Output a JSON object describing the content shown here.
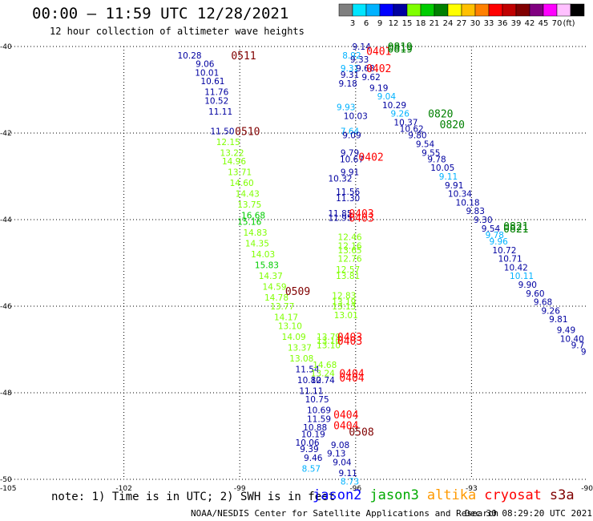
{
  "header": {
    "title": "00:00 – 11:59 UTC 12/28/2021",
    "subtitle": "12 hour collection of altimeter wave heights"
  },
  "colorbar": {
    "colors": [
      "#7f7f7f",
      "#00e5ff",
      "#00b2ff",
      "#0000ff",
      "#0000a0",
      "#7fff00",
      "#00cc00",
      "#008000",
      "#ffff00",
      "#ffc000",
      "#ff8000",
      "#ff0000",
      "#c00000",
      "#800000",
      "#800080",
      "#ff00ff",
      "#ffc0ff",
      "#000000"
    ],
    "ticks": [
      "3",
      "6",
      "9",
      "12",
      "15",
      "18",
      "21",
      "24",
      "27",
      "30",
      "33",
      "36",
      "39",
      "42",
      "45",
      "70"
    ],
    "unit": "(ft)"
  },
  "note": "note: 1) Time is in UTC; 2) SWH is in feet",
  "legend": [
    {
      "name": "jason2",
      "color": "#0000ff"
    },
    {
      "name": "jason3",
      "color": "#00aa00"
    },
    {
      "name": "altika",
      "color": "#ff9900"
    },
    {
      "name": "cryosat",
      "color": "#ff0000"
    },
    {
      "name": "s3a",
      "color": "#800000"
    }
  ],
  "footer": {
    "left": "NOAA/NESDIS Center for Satellite Applications and Research",
    "right": "Dec 30 08:29:20 UTC 2021"
  },
  "chart_data": {
    "type": "scatter",
    "title": "00:00 – 11:59 UTC 12/28/2021",
    "subtitle": "12 hour collection of altimeter wave heights",
    "xlim": [
      -105,
      -90
    ],
    "ylim": [
      -50,
      -40
    ],
    "x_ticks": [
      "-105",
      "-102",
      "-99",
      "-96",
      "-93",
      "-90"
    ],
    "y_ticks": [
      "-40",
      "-42",
      "-44",
      "-46",
      "-48",
      "-50"
    ],
    "grid": true,
    "points": [
      {
        "x": -100.3,
        "y": -40.2,
        "label": "10.28",
        "color": "#0000a0"
      },
      {
        "x": -99.9,
        "y": -40.4,
        "label": "9.06",
        "color": "#0000a0"
      },
      {
        "x": -99.85,
        "y": -40.6,
        "label": "10.01",
        "color": "#0000a0"
      },
      {
        "x": -99.7,
        "y": -40.8,
        "label": "10.61",
        "color": "#0000a0"
      },
      {
        "x": -99.6,
        "y": -41.05,
        "label": "11.76",
        "color": "#0000a0"
      },
      {
        "x": -99.6,
        "y": -41.25,
        "label": "10.52",
        "color": "#0000a0"
      },
      {
        "x": -99.5,
        "y": -41.5,
        "label": "11.11",
        "color": "#0000a0"
      },
      {
        "x": -99.45,
        "y": -41.95,
        "label": "11.50",
        "color": "#0000a0"
      },
      {
        "x": -99.3,
        "y": -42.2,
        "label": "12.15",
        "color": "#7fff00"
      },
      {
        "x": -99.2,
        "y": -42.45,
        "label": "13.22",
        "color": "#7fff00"
      },
      {
        "x": -99.15,
        "y": -42.65,
        "label": "14.96",
        "color": "#7fff00"
      },
      {
        "x": -99.0,
        "y": -42.9,
        "label": "13.71",
        "color": "#7fff00"
      },
      {
        "x": -98.95,
        "y": -43.15,
        "label": "14.60",
        "color": "#7fff00"
      },
      {
        "x": -98.8,
        "y": -43.4,
        "label": "14.43",
        "color": "#7fff00"
      },
      {
        "x": -98.75,
        "y": -43.65,
        "label": "13.75",
        "color": "#7fff00"
      },
      {
        "x": -98.65,
        "y": -43.9,
        "label": "16.68",
        "color": "#00cc00"
      },
      {
        "x": -98.75,
        "y": -44.05,
        "label": "15.16",
        "color": "#00cc00"
      },
      {
        "x": -98.6,
        "y": -44.3,
        "label": "14.83",
        "color": "#7fff00"
      },
      {
        "x": -98.55,
        "y": -44.55,
        "label": "14.35",
        "color": "#7fff00"
      },
      {
        "x": -98.4,
        "y": -44.8,
        "label": "14.03",
        "color": "#7fff00"
      },
      {
        "x": -98.3,
        "y": -45.05,
        "label": "15.83",
        "color": "#00cc00"
      },
      {
        "x": -98.2,
        "y": -45.3,
        "label": "14.37",
        "color": "#7fff00"
      },
      {
        "x": -98.1,
        "y": -45.55,
        "label": "14.59",
        "color": "#7fff00"
      },
      {
        "x": -98.05,
        "y": -45.8,
        "label": "14.78",
        "color": "#7fff00"
      },
      {
        "x": -97.9,
        "y": -46.0,
        "label": "13.77",
        "color": "#7fff00"
      },
      {
        "x": -97.8,
        "y": -46.25,
        "label": "14.17",
        "color": "#7fff00"
      },
      {
        "x": -97.7,
        "y": -46.45,
        "label": "13.10",
        "color": "#7fff00"
      },
      {
        "x": -97.6,
        "y": -46.7,
        "label": "14.09",
        "color": "#7fff00"
      },
      {
        "x": -97.45,
        "y": -46.95,
        "label": "13.37",
        "color": "#7fff00"
      },
      {
        "x": -97.4,
        "y": -47.2,
        "label": "13.08",
        "color": "#7fff00"
      },
      {
        "x": -97.25,
        "y": -47.45,
        "label": "11.54",
        "color": "#0000a0"
      },
      {
        "x": -97.2,
        "y": -47.7,
        "label": "10.80",
        "color": "#0000a0"
      },
      {
        "x": -97.15,
        "y": -47.95,
        "label": "11.11",
        "color": "#0000a0"
      },
      {
        "x": -97.0,
        "y": -48.15,
        "label": "10.75",
        "color": "#0000a0"
      },
      {
        "x": -96.95,
        "y": -48.4,
        "label": "10.69",
        "color": "#0000a0"
      },
      {
        "x": -96.95,
        "y": -48.6,
        "label": "11.59",
        "color": "#0000a0"
      },
      {
        "x": -97.05,
        "y": -48.8,
        "label": "10.88",
        "color": "#0000a0"
      },
      {
        "x": -97.1,
        "y": -48.95,
        "label": "10.19",
        "color": "#0000a0"
      },
      {
        "x": -97.2,
        "y": -49.3,
        "label": "9.39",
        "color": "#0000a0"
      },
      {
        "x": -97.25,
        "y": -49.15,
        "label": "10.06",
        "color": "#0000a0"
      },
      {
        "x": -97.1,
        "y": -49.5,
        "label": "9.46",
        "color": "#0000a0"
      },
      {
        "x": -97.15,
        "y": -49.75,
        "label": "8.57",
        "color": "#00b2ff"
      },
      {
        "x": -96.4,
        "y": -49.2,
        "label": "9.08",
        "color": "#0000a0"
      },
      {
        "x": -96.5,
        "y": -49.4,
        "label": "9.13",
        "color": "#0000a0"
      },
      {
        "x": -96.35,
        "y": -49.6,
        "label": "9.04",
        "color": "#0000a0"
      },
      {
        "x": -96.2,
        "y": -49.85,
        "label": "9.11",
        "color": "#0000a0"
      },
      {
        "x": -96.15,
        "y": -50.05,
        "label": "8.73",
        "color": "#00b2ff"
      },
      {
        "x": -96.1,
        "y": -40.2,
        "label": "8.92",
        "color": "#00b2ff"
      },
      {
        "x": -95.85,
        "y": -40.0,
        "label": "9.14",
        "color": "#0000a0"
      },
      {
        "x": -96.15,
        "y": -40.5,
        "label": "9.31",
        "color": "#00b2ff"
      },
      {
        "x": -96.15,
        "y": -40.65,
        "label": "9.31",
        "color": "#0000a0"
      },
      {
        "x": -96.2,
        "y": -40.85,
        "label": "9.18",
        "color": "#0000a0"
      },
      {
        "x": -96.25,
        "y": -41.4,
        "label": "9.93",
        "color": "#00b2ff"
      },
      {
        "x": -96.0,
        "y": -41.6,
        "label": "10.03",
        "color": "#0000a0"
      },
      {
        "x": -96.15,
        "y": -41.95,
        "label": "7.64",
        "color": "#00b2ff"
      },
      {
        "x": -96.1,
        "y": -42.05,
        "label": "9.09",
        "color": "#0000a0"
      },
      {
        "x": -96.15,
        "y": -42.45,
        "label": "9.79",
        "color": "#0000a0"
      },
      {
        "x": -96.1,
        "y": -42.6,
        "label": "10.67",
        "color": "#0000a0"
      },
      {
        "x": -96.15,
        "y": -42.9,
        "label": "9.91",
        "color": "#0000a0"
      },
      {
        "x": -96.4,
        "y": -43.05,
        "label": "10.32",
        "color": "#0000a0"
      },
      {
        "x": -96.2,
        "y": -43.35,
        "label": "11.56",
        "color": "#0000a0"
      },
      {
        "x": -96.2,
        "y": -43.5,
        "label": "11.30",
        "color": "#0000a0"
      },
      {
        "x": -96.4,
        "y": -43.85,
        "label": "11.85",
        "color": "#0000a0"
      },
      {
        "x": -96.4,
        "y": -43.95,
        "label": "11.95",
        "color": "#0000a0"
      },
      {
        "x": -96.15,
        "y": -44.4,
        "label": "12.46",
        "color": "#7fff00"
      },
      {
        "x": -96.15,
        "y": -44.6,
        "label": "12.16",
        "color": "#7fff00"
      },
      {
        "x": -96.15,
        "y": -44.7,
        "label": "13.65",
        "color": "#7fff00"
      },
      {
        "x": -96.15,
        "y": -44.9,
        "label": "12.76",
        "color": "#7fff00"
      },
      {
        "x": -96.2,
        "y": -45.15,
        "label": "12.57",
        "color": "#7fff00"
      },
      {
        "x": -96.2,
        "y": -45.3,
        "label": "13.81",
        "color": "#7fff00"
      },
      {
        "x": -96.3,
        "y": -45.75,
        "label": "12.83",
        "color": "#7fff00"
      },
      {
        "x": -96.3,
        "y": -45.9,
        "label": "13.19",
        "color": "#7fff00"
      },
      {
        "x": -96.3,
        "y": -46.0,
        "label": "13.13",
        "color": "#7fff00"
      },
      {
        "x": -96.25,
        "y": -46.2,
        "label": "13.01",
        "color": "#7fff00"
      },
      {
        "x": -96.7,
        "y": -46.7,
        "label": "13.79",
        "color": "#7fff00"
      },
      {
        "x": -96.7,
        "y": -46.8,
        "label": "13.10",
        "color": "#7fff00"
      },
      {
        "x": -96.7,
        "y": -46.9,
        "label": "13.10",
        "color": "#7fff00"
      },
      {
        "x": -96.8,
        "y": -47.35,
        "label": "14.68",
        "color": "#7fff00"
      },
      {
        "x": -96.85,
        "y": -47.55,
        "label": "13.24",
        "color": "#7fff00"
      },
      {
        "x": -96.85,
        "y": -47.7,
        "label": "12.74",
        "color": "#0000a0"
      },
      {
        "x": -95.9,
        "y": -40.3,
        "label": "9.33",
        "color": "#0000a0"
      },
      {
        "x": -95.75,
        "y": -40.5,
        "label": "9.68",
        "color": "#0000a0"
      },
      {
        "x": -95.6,
        "y": -40.7,
        "label": "9.62",
        "color": "#0000a0"
      },
      {
        "x": -95.4,
        "y": -40.95,
        "label": "9.19",
        "color": "#0000a0"
      },
      {
        "x": -95.2,
        "y": -41.15,
        "label": "9.04",
        "color": "#00b2ff"
      },
      {
        "x": -95.0,
        "y": -41.35,
        "label": "10.29",
        "color": "#0000a0"
      },
      {
        "x": -94.85,
        "y": -41.55,
        "label": "9.26",
        "color": "#00b2ff"
      },
      {
        "x": -94.7,
        "y": -41.75,
        "label": "10.37",
        "color": "#0000a0"
      },
      {
        "x": -94.55,
        "y": -41.9,
        "label": "10.62",
        "color": "#0000a0"
      },
      {
        "x": -94.4,
        "y": -42.05,
        "label": "9.80",
        "color": "#0000a0"
      },
      {
        "x": -94.2,
        "y": -42.25,
        "label": "9.54",
        "color": "#0000a0"
      },
      {
        "x": -94.05,
        "y": -42.45,
        "label": "9.55",
        "color": "#0000a0"
      },
      {
        "x": -93.9,
        "y": -42.6,
        "label": "9.78",
        "color": "#0000a0"
      },
      {
        "x": -93.75,
        "y": -42.8,
        "label": "10.05",
        "color": "#0000a0"
      },
      {
        "x": -93.6,
        "y": -43.0,
        "label": "9.11",
        "color": "#00b2ff"
      },
      {
        "x": -93.45,
        "y": -43.2,
        "label": "9.91",
        "color": "#0000a0"
      },
      {
        "x": -93.3,
        "y": -43.4,
        "label": "10.34",
        "color": "#0000a0"
      },
      {
        "x": -93.1,
        "y": -43.6,
        "label": "10.18",
        "color": "#0000a0"
      },
      {
        "x": -92.9,
        "y": -43.8,
        "label": "9.83",
        "color": "#0000a0"
      },
      {
        "x": -92.7,
        "y": -44.0,
        "label": "9.30",
        "color": "#0000a0"
      },
      {
        "x": -92.5,
        "y": -44.2,
        "label": "9.54",
        "color": "#0000a0"
      },
      {
        "x": -92.4,
        "y": -44.35,
        "label": "9.78",
        "color": "#00b2ff"
      },
      {
        "x": -92.3,
        "y": -44.5,
        "label": "9.96",
        "color": "#00b2ff"
      },
      {
        "x": -92.15,
        "y": -44.7,
        "label": "10.72",
        "color": "#0000a0"
      },
      {
        "x": -92.0,
        "y": -44.9,
        "label": "10.71",
        "color": "#0000a0"
      },
      {
        "x": -91.85,
        "y": -45.1,
        "label": "10.42",
        "color": "#0000a0"
      },
      {
        "x": -91.7,
        "y": -45.3,
        "label": "10.11",
        "color": "#00b2ff"
      },
      {
        "x": -91.55,
        "y": -45.5,
        "label": "9.90",
        "color": "#0000a0"
      },
      {
        "x": -91.35,
        "y": -45.7,
        "label": "9.60",
        "color": "#0000a0"
      },
      {
        "x": -91.15,
        "y": -45.9,
        "label": "9.68",
        "color": "#0000a0"
      },
      {
        "x": -90.95,
        "y": -46.1,
        "label": "9.26",
        "color": "#0000a0"
      },
      {
        "x": -90.75,
        "y": -46.3,
        "label": "9.81",
        "color": "#0000a0"
      },
      {
        "x": -90.55,
        "y": -46.55,
        "label": "9.49",
        "color": "#0000a0"
      },
      {
        "x": -90.4,
        "y": -46.75,
        "label": "10.40",
        "color": "#0000a0"
      },
      {
        "x": -90.25,
        "y": -46.9,
        "label": "9.7",
        "color": "#0000a0"
      },
      {
        "x": -90.1,
        "y": -47.05,
        "label": "9",
        "color": "#0000a0"
      }
    ],
    "pass_labels": [
      {
        "x": -98.9,
        "y": -40.2,
        "label": "0511",
        "color": "#800000"
      },
      {
        "x": -98.8,
        "y": -41.95,
        "label": "0510",
        "color": "#800000"
      },
      {
        "x": -97.5,
        "y": -45.65,
        "label": "0509",
        "color": "#800000"
      },
      {
        "x": -95.4,
        "y": -40.1,
        "label": "0401",
        "color": "#ff0000"
      },
      {
        "x": -95.4,
        "y": -40.5,
        "label": "0402",
        "color": "#ff0000"
      },
      {
        "x": -95.6,
        "y": -42.55,
        "label": "0402",
        "color": "#ff0000"
      },
      {
        "x": -95.85,
        "y": -43.85,
        "label": "0403",
        "color": "#ff0000"
      },
      {
        "x": -95.85,
        "y": -43.95,
        "label": "0403",
        "color": "#ff0000"
      },
      {
        "x": -96.15,
        "y": -46.7,
        "label": "0403",
        "color": "#ff0000"
      },
      {
        "x": -96.15,
        "y": -46.8,
        "label": "0403",
        "color": "#ff0000"
      },
      {
        "x": -96.1,
        "y": -47.55,
        "label": "0404",
        "color": "#ff0000"
      },
      {
        "x": -96.1,
        "y": -47.65,
        "label": "0404",
        "color": "#ff0000"
      },
      {
        "x": -96.25,
        "y": -48.5,
        "label": "0404",
        "color": "#ff0000"
      },
      {
        "x": -96.25,
        "y": -48.75,
        "label": "0404",
        "color": "#ff0000"
      },
      {
        "x": -95.85,
        "y": -48.9,
        "label": "0508",
        "color": "#800000"
      },
      {
        "x": -94.85,
        "y": -40.0,
        "label": "0819",
        "color": "#008000"
      },
      {
        "x": -94.85,
        "y": -40.05,
        "label": "0819",
        "color": "#008000"
      },
      {
        "x": -93.8,
        "y": -41.55,
        "label": "0820",
        "color": "#008000"
      },
      {
        "x": -93.5,
        "y": -41.8,
        "label": "0820",
        "color": "#008000"
      },
      {
        "x": -91.85,
        "y": -44.15,
        "label": "0821",
        "color": "#008000"
      },
      {
        "x": -91.85,
        "y": -44.2,
        "label": "0821",
        "color": "#008000"
      }
    ]
  }
}
